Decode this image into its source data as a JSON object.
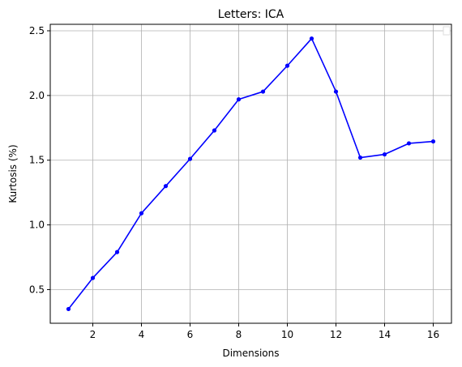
{
  "chart_data": {
    "type": "line",
    "title": "Letters: ICA",
    "xlabel": "Dimensions",
    "ylabel": "Kurtosis (%)",
    "xlim": [
      0.25,
      16.75
    ],
    "ylim": [
      0.24,
      2.55
    ],
    "xticks": [
      2,
      4,
      6,
      8,
      10,
      12,
      14,
      16
    ],
    "yticks": [
      0.5,
      1.0,
      1.5,
      2.0,
      2.5
    ],
    "xtick_labels": [
      "2",
      "4",
      "6",
      "8",
      "10",
      "12",
      "14",
      "16"
    ],
    "ytick_labels": [
      "0.5",
      "1.0",
      "1.5",
      "2.0",
      "2.5"
    ],
    "grid": true,
    "legend": "upper-right (empty)",
    "series": [
      {
        "color": "#0000ff",
        "marker": "circle",
        "x": [
          1,
          2,
          3,
          4,
          5,
          6,
          7,
          8,
          9,
          10,
          11,
          12,
          13,
          14,
          15,
          16
        ],
        "y": [
          0.35,
          0.59,
          0.79,
          1.09,
          1.3,
          1.51,
          1.73,
          1.97,
          2.03,
          2.23,
          2.44,
          2.03,
          1.52,
          1.545,
          1.63,
          1.645
        ]
      }
    ]
  }
}
